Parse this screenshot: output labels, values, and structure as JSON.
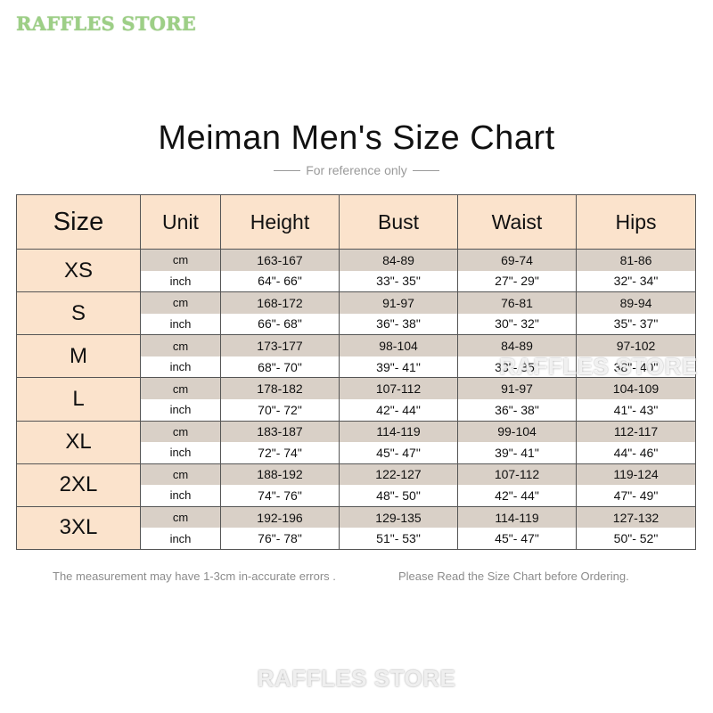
{
  "watermarks": {
    "top": "RAFFLES STORE",
    "middle": "RAFFLES STORE",
    "bottom": "RAFFLES STORE"
  },
  "title": "Meiman Men's Size Chart",
  "subtitle": "For reference only",
  "headers": [
    "Size",
    "Unit",
    "Height",
    "Bust",
    "Waist",
    "Hips"
  ],
  "units": {
    "cm": "cm",
    "inch": "inch"
  },
  "rows": [
    {
      "size": "XS",
      "cm": [
        "163-167",
        "84-89",
        "69-74",
        "81-86"
      ],
      "inch": [
        "64\"- 66\"",
        "33\"- 35\"",
        "27\"- 29\"",
        "32\"- 34\""
      ]
    },
    {
      "size": "S",
      "cm": [
        "168-172",
        "91-97",
        "76-81",
        "89-94"
      ],
      "inch": [
        "66\"- 68\"",
        "36\"- 38\"",
        "30\"- 32\"",
        "35\"- 37\""
      ]
    },
    {
      "size": "M",
      "cm": [
        "173-177",
        "98-104",
        "84-89",
        "97-102"
      ],
      "inch": [
        "68\"- 70\"",
        "39\"- 41\"",
        "33\"- 35\"",
        "38\"- 40\""
      ]
    },
    {
      "size": "L",
      "cm": [
        "178-182",
        "107-112",
        "91-97",
        "104-109"
      ],
      "inch": [
        "70\"- 72\"",
        "42\"- 44\"",
        "36\"- 38\"",
        "41\"- 43\""
      ]
    },
    {
      "size": "XL",
      "cm": [
        "183-187",
        "114-119",
        "99-104",
        "112-117"
      ],
      "inch": [
        "72\"- 74\"",
        "45\"- 47\"",
        "39\"- 41\"",
        "44\"- 46\""
      ]
    },
    {
      "size": "2XL",
      "cm": [
        "188-192",
        "122-127",
        "107-112",
        "119-124"
      ],
      "inch": [
        "74\"- 76\"",
        "48\"- 50\"",
        "42\"- 44\"",
        "47\"- 49\""
      ]
    },
    {
      "size": "3XL",
      "cm": [
        "192-196",
        "129-135",
        "114-119",
        "127-132"
      ],
      "inch": [
        "76\"- 78\"",
        "51\"- 53\"",
        "45\"- 47\"",
        "50\"- 52\""
      ]
    }
  ],
  "notes": {
    "left": "The measurement may have 1-3cm in-accurate errors .",
    "right": "Please Read the Size Chart before Ordering."
  },
  "colors": {
    "header_fill": "#fbe3cc",
    "cm_row_fill": "#d9d0c7",
    "inch_row_fill": "#ffffff",
    "watermark_top": "#9dcf86"
  }
}
